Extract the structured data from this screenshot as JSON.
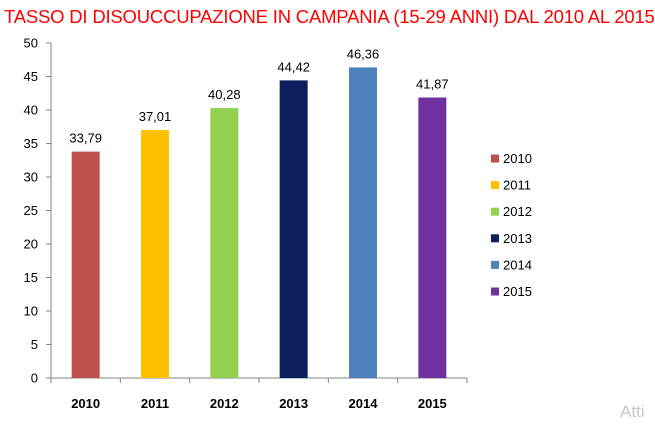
{
  "chart_data": {
    "type": "bar",
    "title": "TASSO DI DISOUCCUPAZIONE IN CAMPANIA (15-29 ANNI) DAL 2010 AL 2015",
    "categories": [
      "2010",
      "2011",
      "2012",
      "2013",
      "2014",
      "2015"
    ],
    "values": [
      33.79,
      37.01,
      40.28,
      44.42,
      46.36,
      41.87
    ],
    "value_labels": [
      "33,79",
      "37,01",
      "40,28",
      "44,42",
      "46,36",
      "41,87"
    ],
    "colors": [
      "#c0504d",
      "#ffc000",
      "#92d050",
      "#0d1f5c",
      "#4f81bd",
      "#7030a0"
    ],
    "ylim": [
      0,
      50
    ],
    "yticks": [
      0,
      5,
      10,
      15,
      20,
      25,
      30,
      35,
      40,
      45,
      50
    ],
    "xlabel": "",
    "ylabel": "",
    "grid": false,
    "legend": {
      "placement": "right",
      "entries": [
        "2010",
        "2011",
        "2012",
        "2013",
        "2014",
        "2015"
      ]
    }
  },
  "watermark": "Atti"
}
